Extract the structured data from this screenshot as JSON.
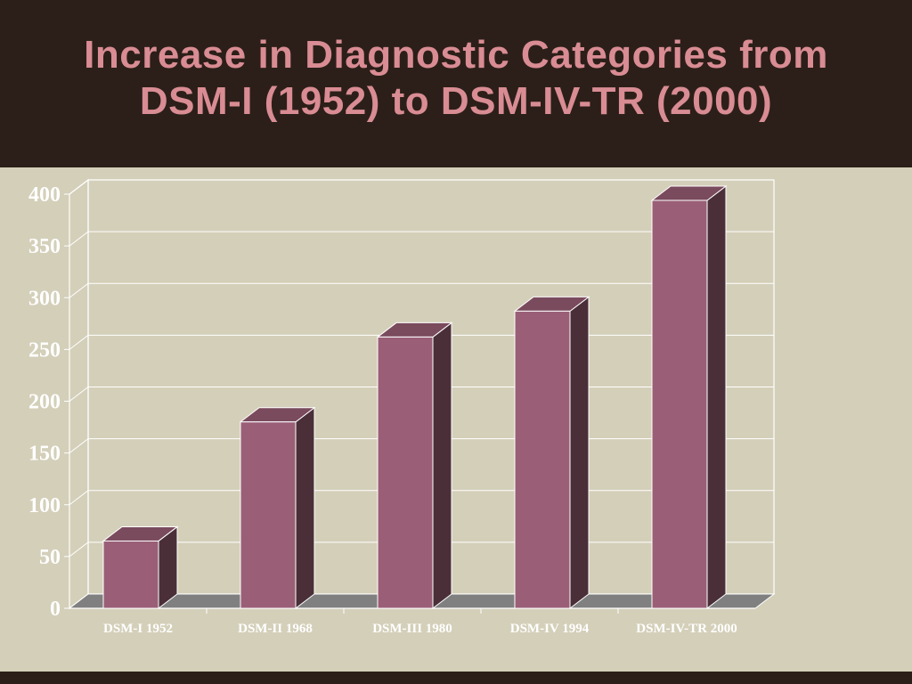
{
  "title_line1": "Increase in Diagnostic Categories from",
  "title_line2": "DSM-I (1952) to DSM-IV-TR (2000)",
  "colors": {
    "header_bg": "#2c1f19",
    "slide_bg": "#d4cfb9",
    "title": "#d98c93",
    "bar_front": "#9a5f76",
    "bar_top": "#7a4a5d",
    "bar_side": "#4a2f38",
    "floor": "#808080",
    "grid": "#ffffff"
  },
  "chart_data": {
    "type": "bar",
    "categories": [
      "DSM-I 1952",
      "DSM-II 1968",
      "DSM-III 1980",
      "DSM-IV 1994",
      "DSM-IV-TR 2000"
    ],
    "values": [
      65,
      180,
      262,
      287,
      394
    ],
    "yticks": [
      "0",
      "50",
      "100",
      "150",
      "200",
      "250",
      "300",
      "350",
      "400"
    ],
    "ylim": [
      0,
      400
    ],
    "grid": true,
    "style": "3d-column"
  }
}
